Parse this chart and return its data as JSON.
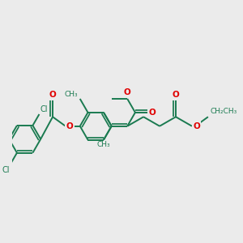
{
  "background_color": "#ebebeb",
  "bond_color": "#1a7a50",
  "oxygen_color": "#e00000",
  "line_width": 1.4,
  "figsize": [
    3.0,
    3.0
  ],
  "dpi": 100,
  "xlim": [
    -4.5,
    7.5
  ],
  "ylim": [
    -4.0,
    4.5
  ]
}
